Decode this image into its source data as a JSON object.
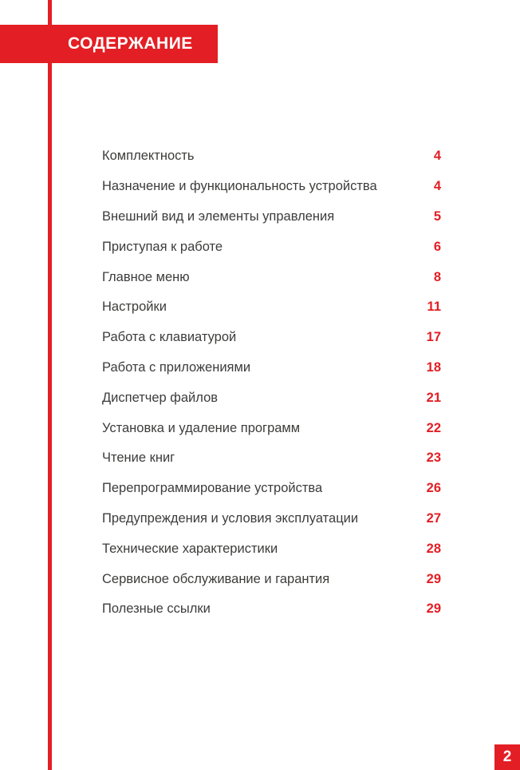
{
  "header": {
    "title": "СОДЕРЖАНИЕ"
  },
  "toc": {
    "entries": [
      {
        "title": "Комплектность",
        "page": "4"
      },
      {
        "title": "Назначение и функциональность устройства",
        "page": "4"
      },
      {
        "title": "Внешний вид и элементы управления",
        "page": "5"
      },
      {
        "title": "Приступая к работе",
        "page": "6"
      },
      {
        "title": "Главное меню",
        "page": "8"
      },
      {
        "title": "Настройки",
        "page": "11"
      },
      {
        "title": "Работа с клавиатурой",
        "page": "17"
      },
      {
        "title": "Работа с приложениями",
        "page": "18"
      },
      {
        "title": "Диспетчер файлов",
        "page": "21"
      },
      {
        "title": "Установка и удаление программ",
        "page": "22"
      },
      {
        "title": "Чтение книг",
        "page": "23"
      },
      {
        "title": "Перепрограммирование устройства",
        "page": "26"
      },
      {
        "title": "Предупреждения и условия эксплуатации",
        "page": "27"
      },
      {
        "title": "Технические характеристики",
        "page": "28"
      },
      {
        "title": "Сервисное обслуживание и гарантия",
        "page": "29"
      },
      {
        "title": "Полезные ссылки",
        "page": "29"
      }
    ]
  },
  "footer": {
    "page_number": "2"
  },
  "colors": {
    "accent_red": "#E31E24",
    "text_dark": "#3C3C3B"
  }
}
